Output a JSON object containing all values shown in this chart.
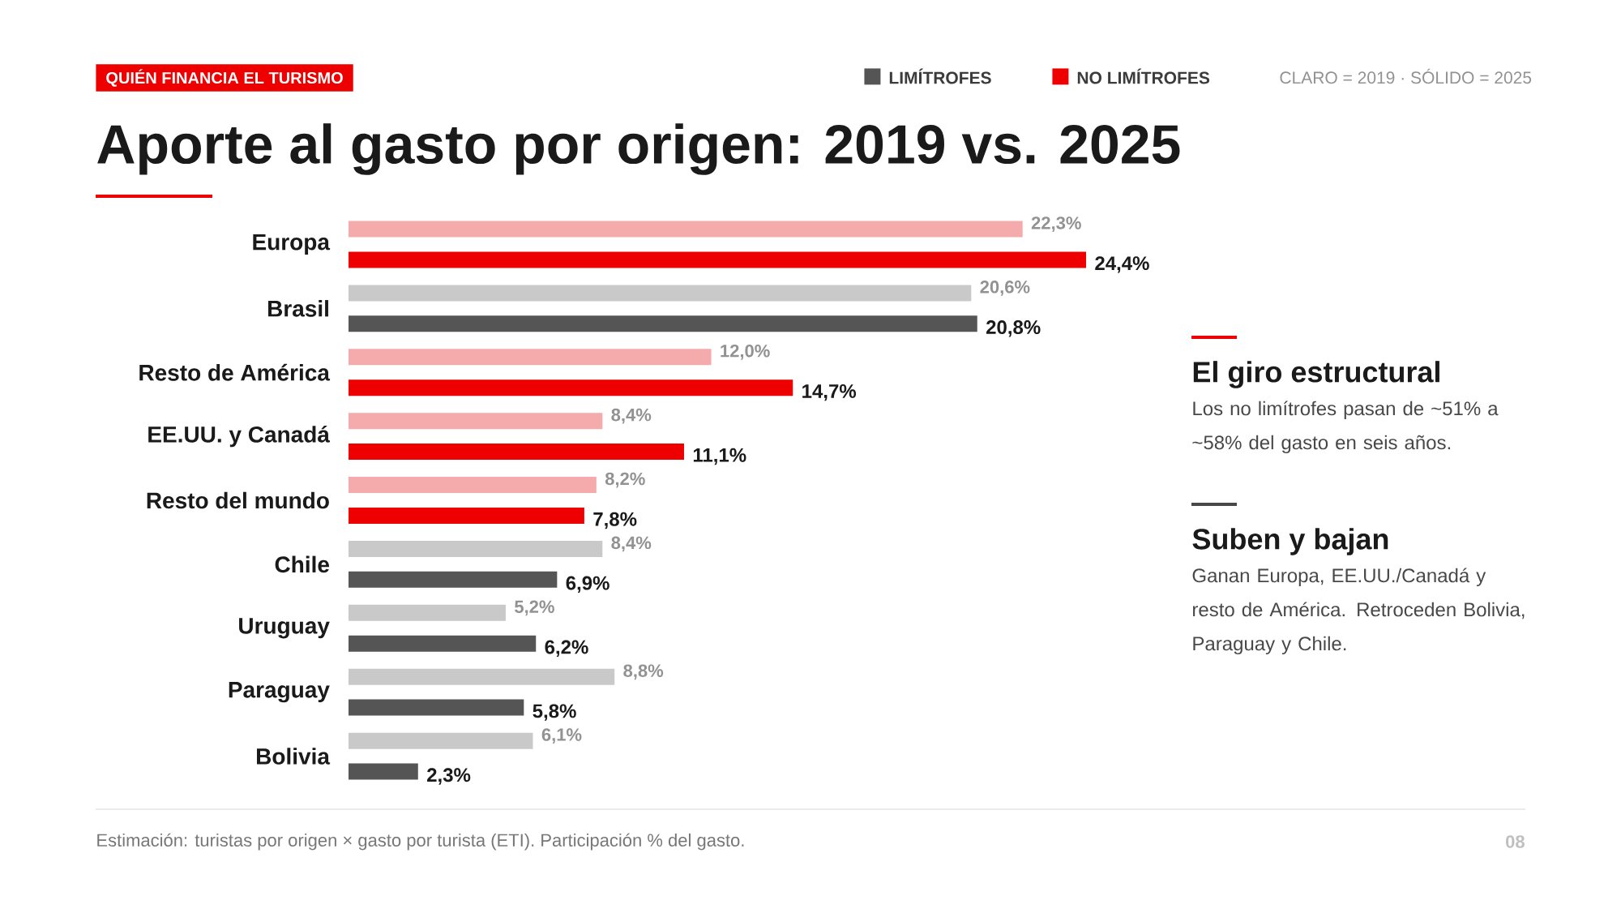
{
  "chart_data": {
    "type": "bar",
    "orientation": "horizontal",
    "subtitle": "QUIÉN FINANCIA EL TURISMO",
    "title": "Aporte al gasto por origen: 2019 vs. 2025",
    "categories": [
      "Europa",
      "Brasil",
      "Resto de América",
      "EE.UU. y Canadá",
      "Resto del mundo",
      "Chile",
      "Uruguay",
      "Paraguay",
      "Bolivia"
    ],
    "series": [
      {
        "colors": [
          "#f5abab",
          "#c9c9c9",
          "#f5abab",
          "#f5abab",
          "#f5abab",
          "#c9c9c9",
          "#c9c9c9",
          "#c9c9c9",
          "#c9c9c9"
        ],
        "values": [
          22.3,
          20.6,
          12.0,
          8.4,
          8.2,
          8.4,
          5.2,
          8.8,
          6.1
        ],
        "value_labels": [
          "22,3%",
          "20,6%",
          "12,0%",
          "8,4%",
          "8,2%",
          "8,4%",
          "5,2%",
          "8,8%",
          "6,1%"
        ]
      },
      {
        "colors": [
          "#ee0000",
          "#555555",
          "#ee0000",
          "#ee0000",
          "#ee0000",
          "#555555",
          "#555555",
          "#555555",
          "#555555"
        ],
        "values": [
          24.4,
          20.8,
          14.7,
          11.1,
          7.8,
          6.9,
          6.2,
          5.8,
          2.3
        ],
        "value_labels": [
          "24,4%",
          "20,8%",
          "14,7%",
          "11,1%",
          "7,8%",
          "6,9%",
          "6,2%",
          "5,8%",
          "2,3%"
        ]
      }
    ],
    "annotations": [
      "LIMÍTROFES",
      "NO LIMÍTROFES",
      "CLARO = 2019 · SÓLIDO = 2025",
      "El giro estructural",
      "Los no limítrofes pasan de ~51% a ~58% del gasto en seis años.",
      "Suben y bajan",
      "Ganan Europa, EE.UU./Canadá y resto de América. Retroceden Bolivia, Paraguay y Chile.",
      "Estimación: turistas por origen × gasto por turista (ETI). Participación % del gasto.",
      "08"
    ]
  }
}
